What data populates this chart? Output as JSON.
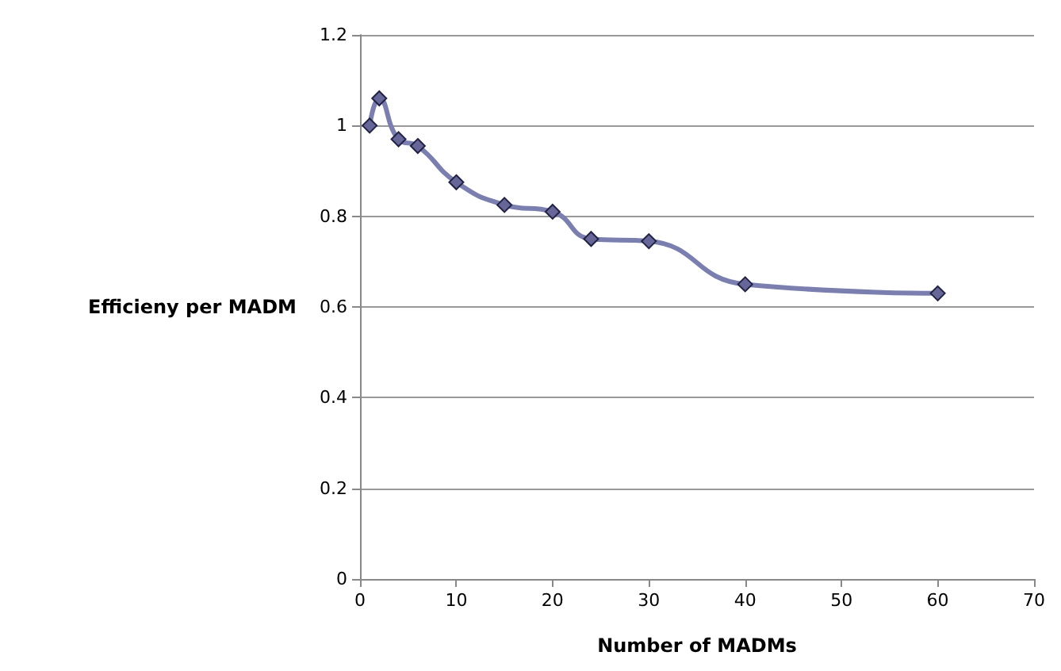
{
  "chart_data": {
    "type": "line",
    "xlabel": "Number of MADMs",
    "ylabel": "Efficieny per MADM",
    "series": [
      {
        "x": [
          1,
          2,
          4,
          6,
          10,
          15,
          20,
          24,
          30,
          40,
          60
        ],
        "values": [
          1.0,
          1.06,
          0.97,
          0.955,
          0.875,
          0.825,
          0.81,
          0.75,
          0.745,
          0.65,
          0.63
        ],
        "color": "#7b7fb0"
      }
    ],
    "xlim": [
      0,
      70
    ],
    "xticks": [
      0,
      10,
      20,
      30,
      40,
      50,
      60,
      70
    ],
    "ylim": [
      0,
      1.2
    ],
    "yticks": [
      0,
      0.2,
      0.4,
      0.6,
      0.8,
      1,
      1.2
    ],
    "grid": "y",
    "marker": "diamond"
  }
}
